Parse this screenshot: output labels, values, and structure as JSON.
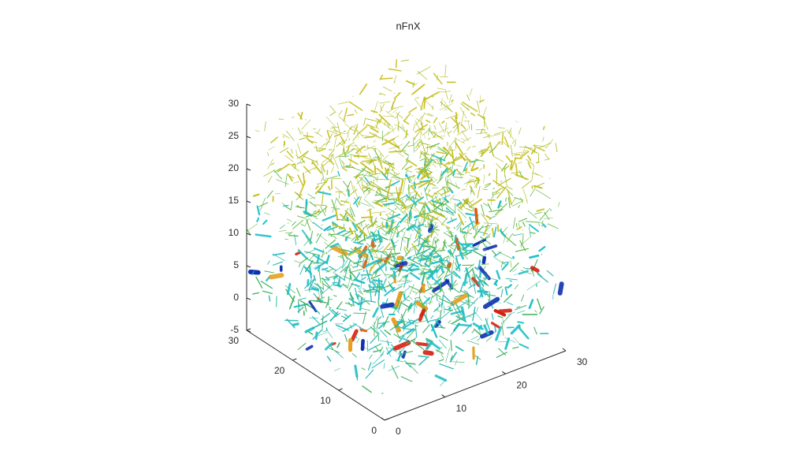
{
  "chart_data": {
    "type": "network3d",
    "title": "nFnX",
    "xlim": [
      0,
      30
    ],
    "ylim": [
      0,
      30
    ],
    "zlim": [
      -5,
      30
    ],
    "xticks": [
      0,
      10,
      20,
      30
    ],
    "yticks": [
      0,
      10,
      20,
      30
    ],
    "zticks": [
      -5,
      0,
      5,
      10,
      15,
      20,
      25,
      30
    ]
  }
}
